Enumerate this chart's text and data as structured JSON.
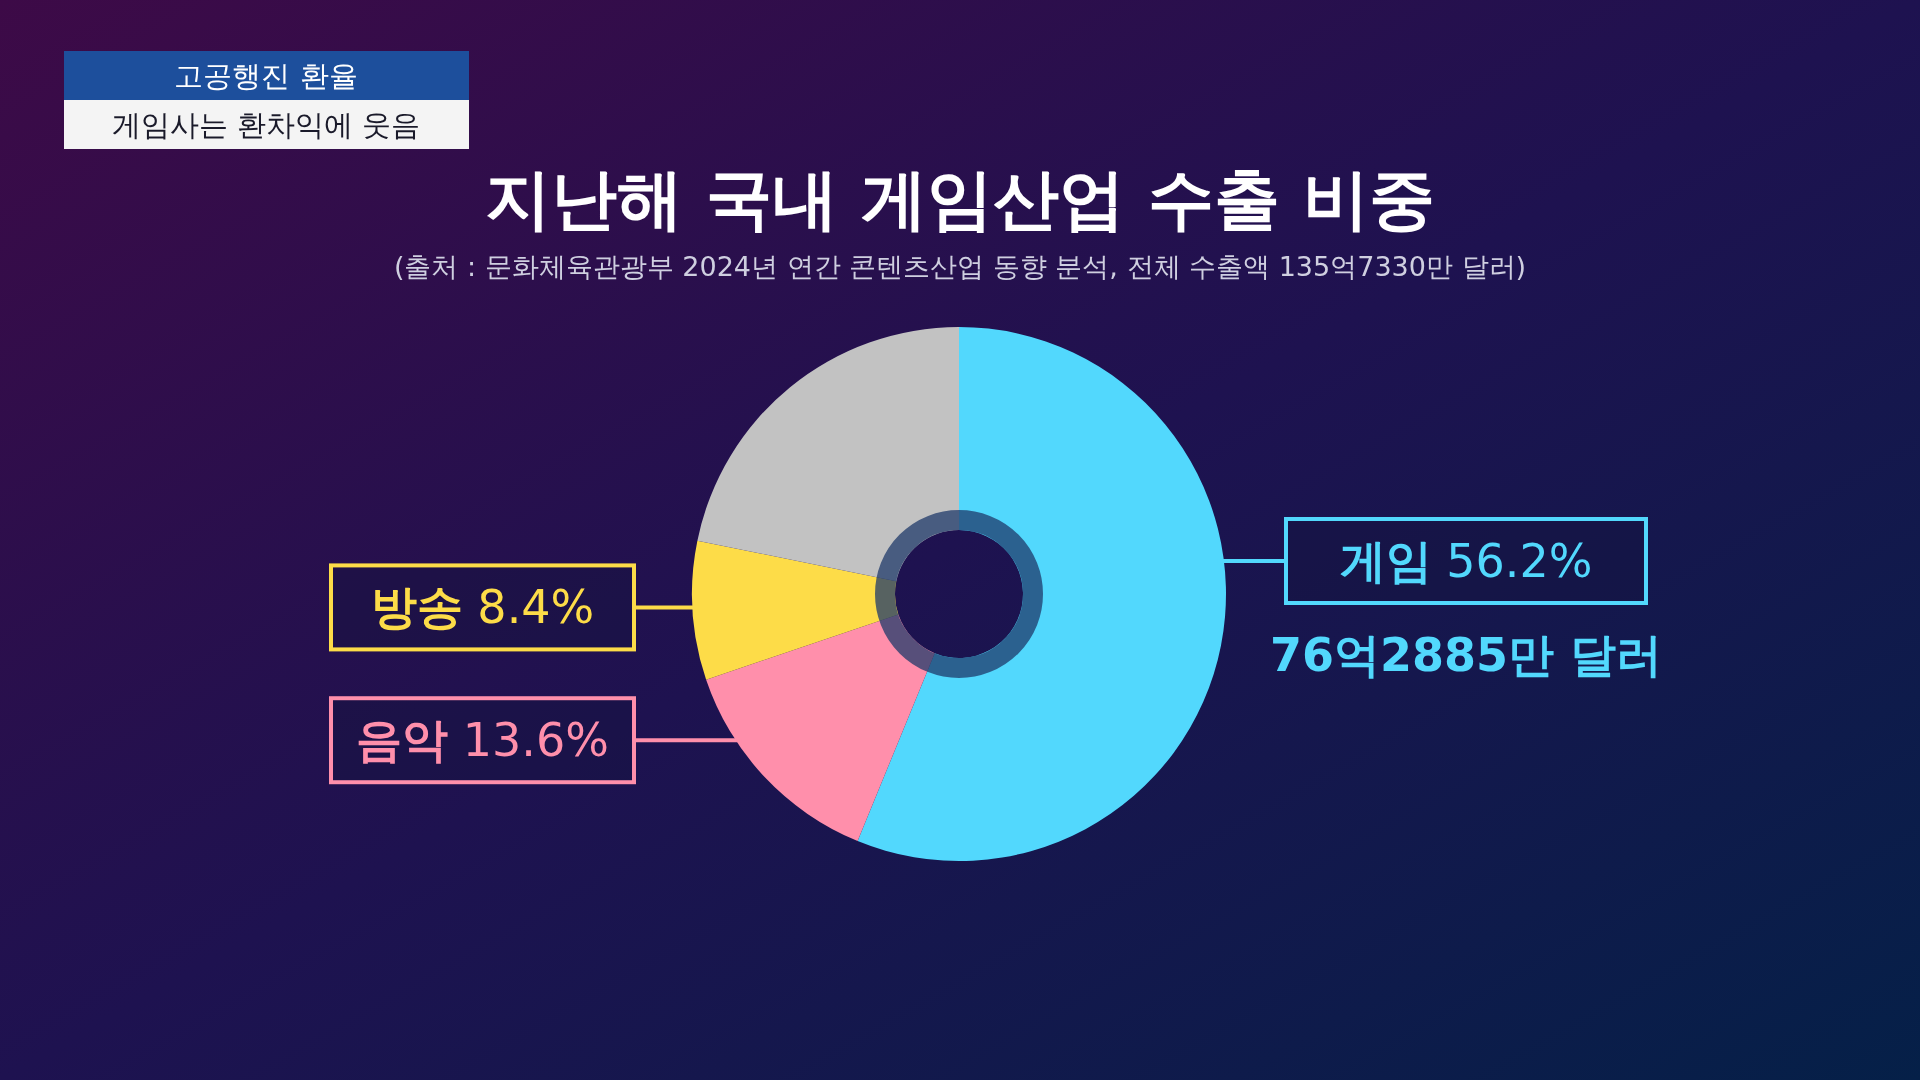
{
  "chart_data": {
    "type": "donut",
    "title": "지난해 국내 게임산업 수출 비중",
    "subtitle": "(출처 : 문화체육관광부 2024년 연간 콘텐츠산업 동향 분석, 전체 수출액 135억7330만 달러)",
    "categories": [
      "게임",
      "음악",
      "방송",
      null
    ],
    "values": [
      56.2,
      13.6,
      8.4,
      21.8
    ],
    "colors": [
      "#52d8fd",
      "#ff8fab",
      "#fddc48",
      "#c2c2c2"
    ],
    "value_labels": [
      "56.2%",
      "13.6%",
      "8.4%",
      null
    ],
    "annotations": [
      "고공행진 환율",
      "게임사는 환차익에 웃음",
      {
        "text": "76억2885만 달러",
        "x": "게임"
      }
    ]
  }
}
